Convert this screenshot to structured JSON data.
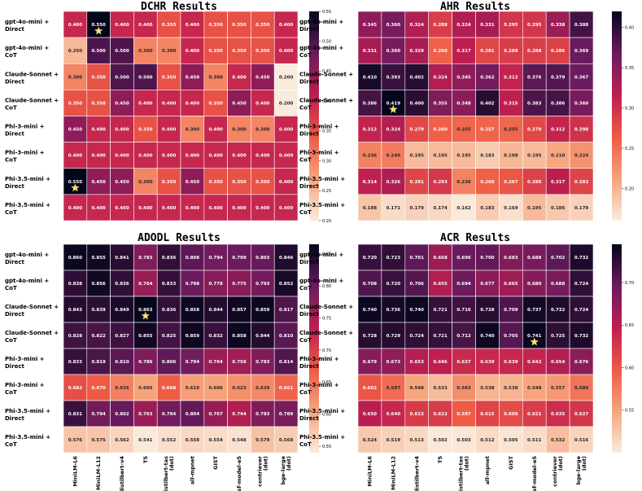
{
  "row_labels": [
    [
      "gpt-4o-mini +",
      "Direct"
    ],
    [
      "gpt-4o-mini +",
      "CoT"
    ],
    [
      "Claude-Sonnet +",
      "Direct"
    ],
    [
      "Claude-Sonnet +",
      "CoT"
    ],
    [
      "Phi-3-mini +",
      "Direct"
    ],
    [
      "Phi-3-mini +",
      "CoT"
    ],
    [
      "Phi-3.5-mini +",
      "Direct"
    ],
    [
      "Phi-3.5-mini +",
      "CoT"
    ]
  ],
  "col_labels": [
    [
      "MiniLM-L6"
    ],
    [
      "MiniLM-L12"
    ],
    [
      "distilbert-v4"
    ],
    [
      "T5"
    ],
    [
      "distilbert-tas",
      "(dot)"
    ],
    [
      "all-mpnet"
    ],
    [
      "GIST"
    ],
    [
      "sf-model-e5"
    ],
    [
      "contriever",
      "(dot)"
    ],
    [
      "bge-large",
      "(dot)"
    ]
  ],
  "chart_data": [
    {
      "type": "heatmap",
      "title": "DCHR Results",
      "vmin": 0.2,
      "vmax": 0.55,
      "cbar_ticks": [
        "0.55",
        "0.50",
        "0.45",
        "0.40",
        "0.35",
        "0.30",
        "0.25",
        "0.20"
      ],
      "values": [
        [
          0.4,
          0.55,
          0.4,
          0.4,
          0.35,
          0.4,
          0.35,
          0.35,
          0.35,
          0.4
        ],
        [
          0.25,
          0.5,
          0.5,
          0.3,
          0.3,
          0.4,
          0.35,
          0.35,
          0.35,
          0.4
        ],
        [
          0.3,
          0.35,
          0.5,
          0.5,
          0.35,
          0.45,
          0.3,
          0.4,
          0.45,
          0.2
        ],
        [
          0.35,
          0.35,
          0.45,
          0.4,
          0.4,
          0.4,
          0.35,
          0.45,
          0.4,
          0.2
        ],
        [
          0.45,
          0.4,
          0.4,
          0.35,
          0.4,
          0.3,
          0.4,
          0.3,
          0.3,
          0.4
        ],
        [
          0.4,
          0.4,
          0.4,
          0.4,
          0.4,
          0.4,
          0.4,
          0.4,
          0.4,
          0.4
        ],
        [
          0.55,
          0.45,
          0.45,
          0.3,
          0.35,
          0.45,
          0.35,
          0.35,
          0.35,
          0.4
        ],
        [
          0.4,
          0.4,
          0.4,
          0.4,
          0.4,
          0.4,
          0.4,
          0.4,
          0.4,
          0.4
        ]
      ],
      "stars": [
        [
          0,
          1
        ],
        [
          6,
          0
        ]
      ]
    },
    {
      "type": "heatmap",
      "title": "AHR Results",
      "vmin": 0.16,
      "vmax": 0.42,
      "cbar_ticks": [
        "0.40",
        "0.35",
        "0.30",
        "0.25",
        "0.20"
      ],
      "values": [
        [
          0.345,
          0.36,
          0.324,
          0.288,
          0.324,
          0.331,
          0.295,
          0.295,
          0.338,
          0.388
        ],
        [
          0.331,
          0.36,
          0.329,
          0.26,
          0.317,
          0.281,
          0.288,
          0.288,
          0.286,
          0.369
        ],
        [
          0.41,
          0.393,
          0.402,
          0.324,
          0.345,
          0.362,
          0.312,
          0.376,
          0.379,
          0.367
        ],
        [
          0.386,
          0.419,
          0.4,
          0.355,
          0.348,
          0.402,
          0.315,
          0.383,
          0.386,
          0.36
        ],
        [
          0.312,
          0.324,
          0.279,
          0.26,
          0.255,
          0.257,
          0.255,
          0.279,
          0.312,
          0.298
        ],
        [
          0.236,
          0.24,
          0.195,
          0.195,
          0.195,
          0.183,
          0.198,
          0.195,
          0.21,
          0.224
        ],
        [
          0.314,
          0.326,
          0.281,
          0.293,
          0.236,
          0.26,
          0.267,
          0.286,
          0.317,
          0.283
        ],
        [
          0.188,
          0.171,
          0.179,
          0.174,
          0.162,
          0.183,
          0.169,
          0.195,
          0.186,
          0.179
        ]
      ],
      "stars": [
        [
          3,
          1
        ]
      ]
    },
    {
      "type": "heatmap",
      "title": "ADODL Results",
      "vmin": 0.54,
      "vmax": 0.865,
      "cbar_ticks": [
        "0.85",
        "0.80",
        "0.75",
        "0.70",
        "0.65",
        "0.60",
        "0.55"
      ],
      "values": [
        [
          0.86,
          0.855,
          0.841,
          0.783,
          0.836,
          0.808,
          0.794,
          0.799,
          0.803,
          0.846
        ],
        [
          0.838,
          0.856,
          0.836,
          0.764,
          0.833,
          0.798,
          0.778,
          0.775,
          0.793,
          0.852
        ],
        [
          0.843,
          0.839,
          0.849,
          0.863,
          0.836,
          0.858,
          0.844,
          0.857,
          0.859,
          0.817
        ],
        [
          0.828,
          0.822,
          0.827,
          0.855,
          0.825,
          0.859,
          0.832,
          0.858,
          0.844,
          0.81
        ],
        [
          0.833,
          0.819,
          0.81,
          0.786,
          0.806,
          0.794,
          0.764,
          0.758,
          0.783,
          0.814
        ],
        [
          0.682,
          0.67,
          0.636,
          0.605,
          0.668,
          0.61,
          0.606,
          0.623,
          0.629,
          0.661
        ],
        [
          0.831,
          0.794,
          0.802,
          0.763,
          0.794,
          0.804,
          0.767,
          0.744,
          0.783,
          0.789
        ],
        [
          0.576,
          0.575,
          0.562,
          0.541,
          0.552,
          0.558,
          0.554,
          0.548,
          0.579,
          0.568
        ]
      ],
      "stars": [
        [
          2,
          3
        ]
      ]
    },
    {
      "type": "heatmap",
      "title": "ACR Results",
      "vmin": 0.5,
      "vmax": 0.745,
      "cbar_ticks": [
        "0.70",
        "0.65",
        "0.60",
        "0.55"
      ],
      "values": [
        [
          0.72,
          0.723,
          0.701,
          0.668,
          0.696,
          0.7,
          0.683,
          0.688,
          0.702,
          0.732
        ],
        [
          0.708,
          0.72,
          0.706,
          0.655,
          0.694,
          0.677,
          0.665,
          0.68,
          0.688,
          0.724
        ],
        [
          0.74,
          0.736,
          0.74,
          0.721,
          0.716,
          0.728,
          0.709,
          0.737,
          0.732,
          0.724
        ],
        [
          0.728,
          0.729,
          0.724,
          0.721,
          0.712,
          0.74,
          0.705,
          0.741,
          0.725,
          0.732
        ],
        [
          0.679,
          0.673,
          0.653,
          0.646,
          0.637,
          0.639,
          0.639,
          0.642,
          0.654,
          0.676
        ],
        [
          0.602,
          0.587,
          0.548,
          0.533,
          0.563,
          0.538,
          0.538,
          0.548,
          0.557,
          0.58
        ],
        [
          0.65,
          0.64,
          0.623,
          0.622,
          0.597,
          0.615,
          0.609,
          0.621,
          0.635,
          0.627
        ],
        [
          0.524,
          0.519,
          0.513,
          0.502,
          0.503,
          0.512,
          0.505,
          0.511,
          0.532,
          0.516
        ]
      ],
      "stars": [
        [
          3,
          7
        ]
      ]
    }
  ]
}
